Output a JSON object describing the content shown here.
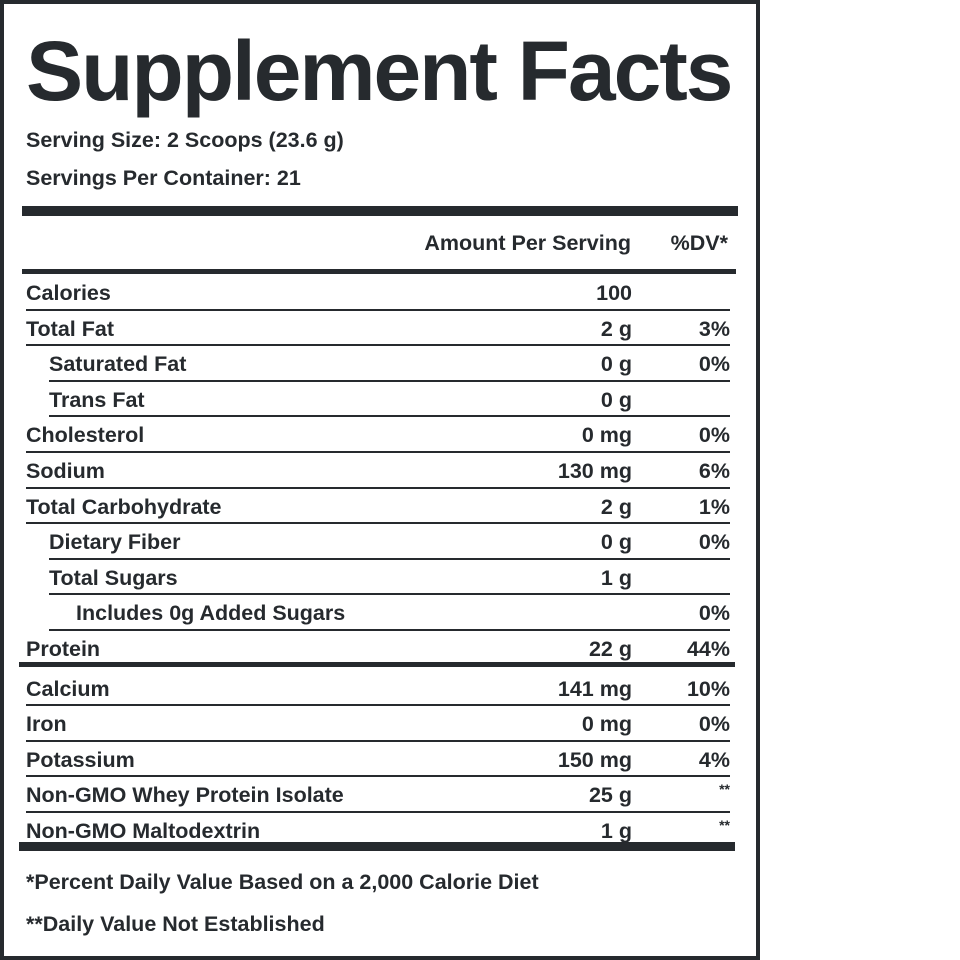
{
  "label": {
    "title": "Supplement Facts",
    "serving_size": "Serving Size: 2 Scoops (23.6 g)",
    "servings_per_container": "Servings Per Container: 21",
    "headers": {
      "amount": "Amount Per Serving",
      "dv": "%DV*"
    },
    "rows": [
      {
        "name": "Calories",
        "amount": "100",
        "dv": "",
        "level": 0
      },
      {
        "name": "Total Fat",
        "amount": "2 g",
        "dv": "3%",
        "level": 0
      },
      {
        "name": "Saturated Fat",
        "amount": "0 g",
        "dv": "0%",
        "level": 1
      },
      {
        "name": "Trans Fat",
        "amount": "0 g",
        "dv": "",
        "level": 1
      },
      {
        "name": "Cholesterol",
        "amount": "0 mg",
        "dv": "0%",
        "level": 0
      },
      {
        "name": "Sodium",
        "amount": "130 mg",
        "dv": "6%",
        "level": 0
      },
      {
        "name": "Total Carbohydrate",
        "amount": "2 g",
        "dv": "1%",
        "level": 0
      },
      {
        "name": "Dietary Fiber",
        "amount": "0 g",
        "dv": "0%",
        "level": 1
      },
      {
        "name": "Total Sugars",
        "amount": "1 g",
        "dv": "",
        "level": 1
      },
      {
        "name": "Includes 0g Added Sugars",
        "amount": "",
        "dv": "0%",
        "level": 2
      },
      {
        "name": "Protein",
        "amount": "22 g",
        "dv": "44%",
        "level": 0
      },
      {
        "name": "Calcium",
        "amount": "141 mg",
        "dv": "10%",
        "level": 0
      },
      {
        "name": "Iron",
        "amount": "0 mg",
        "dv": "0%",
        "level": 0
      },
      {
        "name": "Potassium",
        "amount": "150 mg",
        "dv": "4%",
        "level": 0
      },
      {
        "name": "Non-GMO Whey Protein Isolate",
        "amount": "25 g",
        "dv": "**",
        "level": 0
      },
      {
        "name": "Non-GMO Maltodextrin",
        "amount": "1 g",
        "dv": "**",
        "level": 0
      }
    ],
    "footnotes": {
      "daily_value": "*Percent Daily Value Based on a 2,000 Calorie Diet",
      "not_established": "**Daily Value Not Established"
    },
    "colors": {
      "ink": "#262a2e",
      "background": "#ffffff"
    }
  }
}
